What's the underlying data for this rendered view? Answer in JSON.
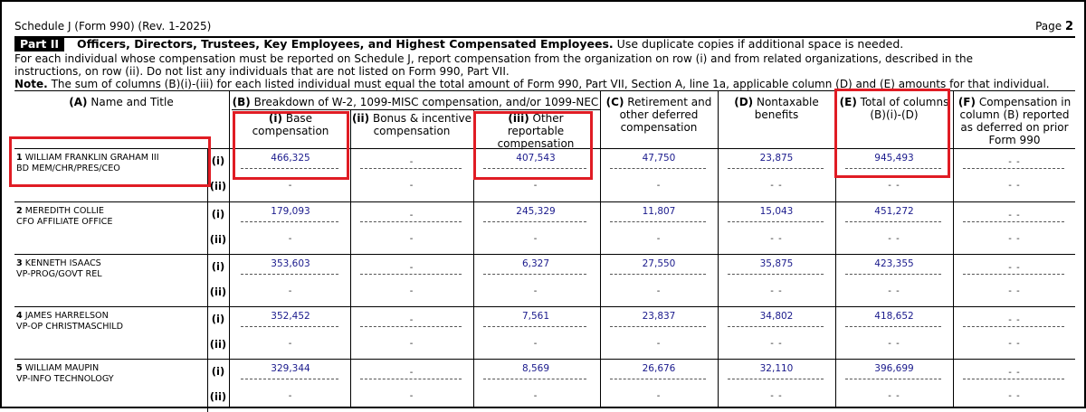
{
  "header": {
    "form_id": "Schedule J (Form 990) (Rev. 1-2025)",
    "page_prefix": "Page",
    "page_num": "2"
  },
  "part": {
    "label": "Part II",
    "title": "Officers, Directors, Trustees, Key Employees, and Highest Compensated Employees.",
    "title_note": "Use duplicate copies if additional space is needed."
  },
  "intro": {
    "line1": "For each individual whose compensation must be reported on Schedule J, report compensation from the organization on row (i) and from related organizations, described in the",
    "line2": "instructions, on row (ii). Do not list any individuals that are not listed on Form 990, Part VII.",
    "note_label": "Note.",
    "note_text": "The sum of columns (B)(i)-(iii) for each listed individual must equal the total amount of Form 990, Part VII, Section A, line 1a, applicable column (D) and (E) amounts for that individual."
  },
  "columns": {
    "a_label": "(A)",
    "a_text": "Name and Title",
    "b_label": "(B)",
    "b_text": "Breakdown of W-2, 1099-MISC compensation, and/or 1099-NEC",
    "bi_label": "(i)",
    "bi_text1": "Base",
    "bi_text2": "compensation",
    "bii_label": "(ii)",
    "bii_text1": "Bonus & incentive",
    "bii_text2": "compensation",
    "biii_label": "(iii)",
    "biii_text1": "Other",
    "biii_text2": "reportable",
    "biii_text3": "compensation",
    "c_label": "(C)",
    "c_text1": "Retirement and",
    "c_text2": "other deferred",
    "c_text3": "compensation",
    "d_label": "(D)",
    "d_text1": "Nontaxable",
    "d_text2": "benefits",
    "e_label": "(E)",
    "e_text1": "Total of columns",
    "e_text2": "(B)(i)-(D)",
    "f_label": "(F)",
    "f_text1": "Compensation in",
    "f_text2": "column (B) reported",
    "f_text3": "as deferred on prior",
    "f_text4": "Form 990"
  },
  "row_tags": {
    "i": "(i)",
    "ii": "(ii)"
  },
  "people": [
    {
      "num": "1",
      "name": "WILLIAM FRANKLIN GRAHAM III",
      "title": "BD MEM/CHR/PRES/CEO",
      "base": "466,325",
      "other": "407,543",
      "retirement": "47,750",
      "nontaxable": "23,875",
      "total": "945,493"
    },
    {
      "num": "2",
      "name": "MEREDITH COLLIE",
      "title": "CFO AFFILIATE OFFICE",
      "base": "179,093",
      "other": "245,329",
      "retirement": "11,807",
      "nontaxable": "15,043",
      "total": "451,272"
    },
    {
      "num": "3",
      "name": "KENNETH ISAACS",
      "title": "VP-PROG/GOVT REL",
      "base": "353,603",
      "other": "6,327",
      "retirement": "27,550",
      "nontaxable": "35,875",
      "total": "423,355"
    },
    {
      "num": "4",
      "name": "JAMES HARRELSON",
      "title": "VP-OP CHRISTMASCHILD",
      "base": "352,452",
      "other": "7,561",
      "retirement": "23,837",
      "nontaxable": "34,802",
      "total": "418,652"
    },
    {
      "num": "5",
      "name": "WILLIAM MAUPIN",
      "title": "VP-INFO TECHNOLOGY",
      "base": "329,344",
      "other": "8,569",
      "retirement": "26,676",
      "nontaxable": "32,110",
      "total": "396,699"
    }
  ],
  "empty_mark_single": "-",
  "empty_mark_double": "- -",
  "highlight_color": "#e01c24"
}
